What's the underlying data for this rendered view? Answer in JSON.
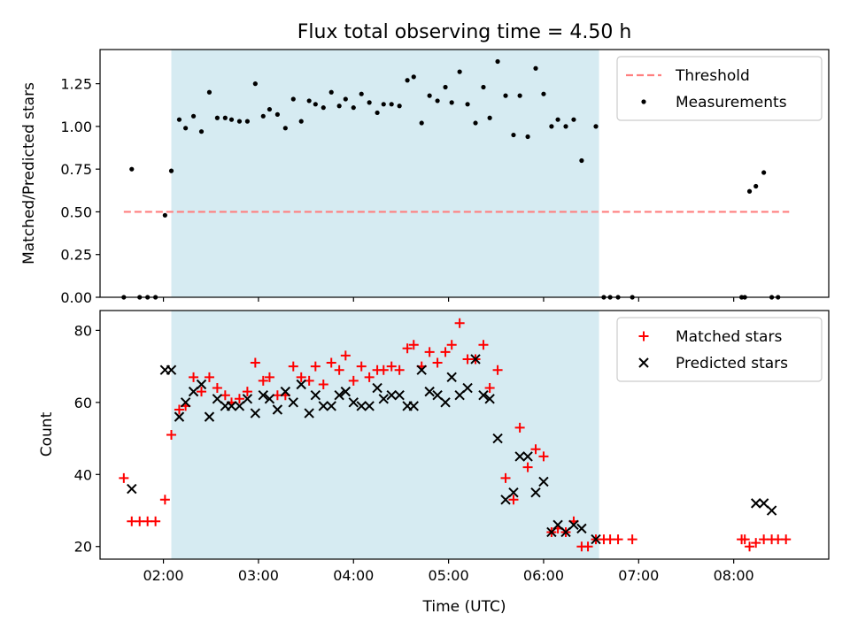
{
  "chart_data": [
    {
      "type": "scatter",
      "title": "Flux total observing time = 4.50 h",
      "ylabel": "Matched/Predicted stars",
      "xlabel": "",
      "x_unit": "UTC time",
      "xlim": [
        "01:20",
        "09:00"
      ],
      "ylim": [
        0,
        1.45
      ],
      "yticks": [
        "0.00",
        "0.25",
        "0.50",
        "0.75",
        "1.00",
        "1.25"
      ],
      "xticks": [
        "02:00",
        "03:00",
        "04:00",
        "05:00",
        "06:00",
        "07:00",
        "08:00"
      ],
      "shaded_span": [
        "02:05",
        "06:35"
      ],
      "threshold": {
        "name": "Threshold",
        "y": 0.5,
        "x_range": [
          "01:35",
          "08:35"
        ],
        "color": "#ff7f7f"
      },
      "legend_position": "upper right",
      "series": [
        {
          "name": "Measurements",
          "color": "#000000",
          "marker": "dot",
          "points": [
            [
              "01:35",
              0.0
            ],
            [
              "01:40",
              0.75
            ],
            [
              "01:45",
              0.0
            ],
            [
              "01:50",
              0.0
            ],
            [
              "01:55",
              0.0
            ],
            [
              "02:01",
              0.48
            ],
            [
              "02:05",
              0.74
            ],
            [
              "02:10",
              1.04
            ],
            [
              "02:14",
              0.99
            ],
            [
              "02:19",
              1.06
            ],
            [
              "02:24",
              0.97
            ],
            [
              "02:29",
              1.2
            ],
            [
              "02:34",
              1.05
            ],
            [
              "02:39",
              1.05
            ],
            [
              "02:43",
              1.04
            ],
            [
              "02:48",
              1.03
            ],
            [
              "02:53",
              1.03
            ],
            [
              "02:58",
              1.25
            ],
            [
              "03:03",
              1.06
            ],
            [
              "03:07",
              1.1
            ],
            [
              "03:12",
              1.07
            ],
            [
              "03:17",
              0.99
            ],
            [
              "03:22",
              1.16
            ],
            [
              "03:27",
              1.03
            ],
            [
              "03:32",
              1.15
            ],
            [
              "03:36",
              1.13
            ],
            [
              "03:41",
              1.11
            ],
            [
              "03:46",
              1.2
            ],
            [
              "03:51",
              1.12
            ],
            [
              "03:55",
              1.16
            ],
            [
              "04:00",
              1.11
            ],
            [
              "04:05",
              1.19
            ],
            [
              "04:10",
              1.14
            ],
            [
              "04:15",
              1.08
            ],
            [
              "04:19",
              1.13
            ],
            [
              "04:24",
              1.13
            ],
            [
              "04:29",
              1.12
            ],
            [
              "04:34",
              1.27
            ],
            [
              "04:38",
              1.29
            ],
            [
              "04:43",
              1.02
            ],
            [
              "04:48",
              1.18
            ],
            [
              "04:53",
              1.15
            ],
            [
              "04:58",
              1.23
            ],
            [
              "05:02",
              1.14
            ],
            [
              "05:07",
              1.32
            ],
            [
              "05:12",
              1.13
            ],
            [
              "05:17",
              1.02
            ],
            [
              "05:22",
              1.23
            ],
            [
              "05:26",
              1.05
            ],
            [
              "05:31",
              1.38
            ],
            [
              "05:36",
              1.18
            ],
            [
              "05:41",
              0.95
            ],
            [
              "05:45",
              1.18
            ],
            [
              "05:50",
              0.94
            ],
            [
              "05:55",
              1.34
            ],
            [
              "06:00",
              1.19
            ],
            [
              "06:05",
              1.0
            ],
            [
              "06:09",
              1.04
            ],
            [
              "06:14",
              1.0
            ],
            [
              "06:19",
              1.04
            ],
            [
              "06:24",
              0.8
            ],
            [
              "06:33",
              1.0
            ],
            [
              "06:38",
              0.0
            ],
            [
              "06:42",
              0.0
            ],
            [
              "06:47",
              0.0
            ],
            [
              "06:56",
              0.0
            ],
            [
              "08:05",
              0.0
            ],
            [
              "08:07",
              0.0
            ],
            [
              "08:10",
              0.62
            ],
            [
              "08:14",
              0.65
            ],
            [
              "08:19",
              0.73
            ],
            [
              "08:24",
              0.0
            ],
            [
              "08:28",
              0.0
            ]
          ]
        }
      ]
    },
    {
      "type": "scatter",
      "title": "",
      "ylabel": "Count",
      "xlabel": "Time (UTC)",
      "x_unit": "UTC time",
      "xlim": [
        "01:20",
        "09:00"
      ],
      "ylim": [
        16.5,
        85.5
      ],
      "yticks": [
        "20",
        "40",
        "60",
        "80"
      ],
      "xticks": [
        "02:00",
        "03:00",
        "04:00",
        "05:00",
        "06:00",
        "07:00",
        "08:00"
      ],
      "shaded_span": [
        "02:05",
        "06:35"
      ],
      "legend_position": "upper right",
      "series": [
        {
          "name": "Matched stars",
          "color": "#ff0000",
          "marker": "plus",
          "points": [
            [
              "01:35",
              39
            ],
            [
              "01:40",
              27
            ],
            [
              "01:45",
              27
            ],
            [
              "01:50",
              27
            ],
            [
              "01:55",
              27
            ],
            [
              "02:01",
              33
            ],
            [
              "02:05",
              51
            ],
            [
              "02:10",
              58
            ],
            [
              "02:14",
              59
            ],
            [
              "02:19",
              67
            ],
            [
              "02:24",
              63
            ],
            [
              "02:29",
              67
            ],
            [
              "02:34",
              64
            ],
            [
              "02:39",
              62
            ],
            [
              "02:43",
              60
            ],
            [
              "02:48",
              61
            ],
            [
              "02:53",
              63
            ],
            [
              "02:58",
              71
            ],
            [
              "03:03",
              66
            ],
            [
              "03:07",
              67
            ],
            [
              "03:12",
              62
            ],
            [
              "03:17",
              62
            ],
            [
              "03:22",
              70
            ],
            [
              "03:27",
              67
            ],
            [
              "03:32",
              66
            ],
            [
              "03:36",
              70
            ],
            [
              "03:41",
              65
            ],
            [
              "03:46",
              71
            ],
            [
              "03:51",
              69
            ],
            [
              "03:55",
              73
            ],
            [
              "04:00",
              66
            ],
            [
              "04:05",
              70
            ],
            [
              "04:10",
              67
            ],
            [
              "04:15",
              69
            ],
            [
              "04:19",
              69
            ],
            [
              "04:24",
              70
            ],
            [
              "04:29",
              69
            ],
            [
              "04:34",
              75
            ],
            [
              "04:38",
              76
            ],
            [
              "04:43",
              70
            ],
            [
              "04:48",
              74
            ],
            [
              "04:53",
              71
            ],
            [
              "04:58",
              74
            ],
            [
              "05:02",
              76
            ],
            [
              "05:07",
              82
            ],
            [
              "05:12",
              72
            ],
            [
              "05:17",
              72
            ],
            [
              "05:22",
              76
            ],
            [
              "05:26",
              64
            ],
            [
              "05:31",
              69
            ],
            [
              "05:36",
              39
            ],
            [
              "05:41",
              33
            ],
            [
              "05:45",
              53
            ],
            [
              "05:50",
              42
            ],
            [
              "05:55",
              47
            ],
            [
              "06:00",
              45
            ],
            [
              "06:05",
              24
            ],
            [
              "06:09",
              25
            ],
            [
              "06:14",
              24
            ],
            [
              "06:19",
              27
            ],
            [
              "06:24",
              20
            ],
            [
              "06:28",
              20
            ],
            [
              "06:33",
              22
            ],
            [
              "06:38",
              22
            ],
            [
              "06:42",
              22
            ],
            [
              "06:47",
              22
            ],
            [
              "06:56",
              22
            ],
            [
              "08:05",
              22
            ],
            [
              "08:07",
              22
            ],
            [
              "08:10",
              20
            ],
            [
              "08:14",
              21
            ],
            [
              "08:19",
              22
            ],
            [
              "08:24",
              22
            ],
            [
              "08:28",
              22
            ],
            [
              "08:33",
              22
            ]
          ]
        },
        {
          "name": "Predicted stars",
          "color": "#000000",
          "marker": "x",
          "points": [
            [
              "01:40",
              36
            ],
            [
              "02:01",
              69
            ],
            [
              "02:05",
              69
            ],
            [
              "02:10",
              56
            ],
            [
              "02:14",
              60
            ],
            [
              "02:19",
              63
            ],
            [
              "02:24",
              65
            ],
            [
              "02:29",
              56
            ],
            [
              "02:34",
              61
            ],
            [
              "02:39",
              59
            ],
            [
              "02:43",
              59
            ],
            [
              "02:48",
              59
            ],
            [
              "02:53",
              61
            ],
            [
              "02:58",
              57
            ],
            [
              "03:03",
              62
            ],
            [
              "03:07",
              61
            ],
            [
              "03:12",
              58
            ],
            [
              "03:17",
              63
            ],
            [
              "03:22",
              60
            ],
            [
              "03:27",
              65
            ],
            [
              "03:32",
              57
            ],
            [
              "03:36",
              62
            ],
            [
              "03:41",
              59
            ],
            [
              "03:46",
              59
            ],
            [
              "03:51",
              62
            ],
            [
              "03:55",
              63
            ],
            [
              "04:00",
              60
            ],
            [
              "04:05",
              59
            ],
            [
              "04:10",
              59
            ],
            [
              "04:15",
              64
            ],
            [
              "04:19",
              61
            ],
            [
              "04:24",
              62
            ],
            [
              "04:29",
              62
            ],
            [
              "04:34",
              59
            ],
            [
              "04:38",
              59
            ],
            [
              "04:43",
              69
            ],
            [
              "04:48",
              63
            ],
            [
              "04:53",
              62
            ],
            [
              "04:58",
              60
            ],
            [
              "05:02",
              67
            ],
            [
              "05:07",
              62
            ],
            [
              "05:12",
              64
            ],
            [
              "05:17",
              72
            ],
            [
              "05:22",
              62
            ],
            [
              "05:26",
              61
            ],
            [
              "05:31",
              50
            ],
            [
              "05:36",
              33
            ],
            [
              "05:41",
              35
            ],
            [
              "05:45",
              45
            ],
            [
              "05:50",
              45
            ],
            [
              "05:55",
              35
            ],
            [
              "06:00",
              38
            ],
            [
              "06:05",
              24
            ],
            [
              "06:09",
              26
            ],
            [
              "06:14",
              24
            ],
            [
              "06:19",
              26
            ],
            [
              "06:24",
              25
            ],
            [
              "06:33",
              22
            ],
            [
              "08:14",
              32
            ],
            [
              "08:19",
              32
            ],
            [
              "08:24",
              30
            ]
          ]
        }
      ]
    }
  ]
}
